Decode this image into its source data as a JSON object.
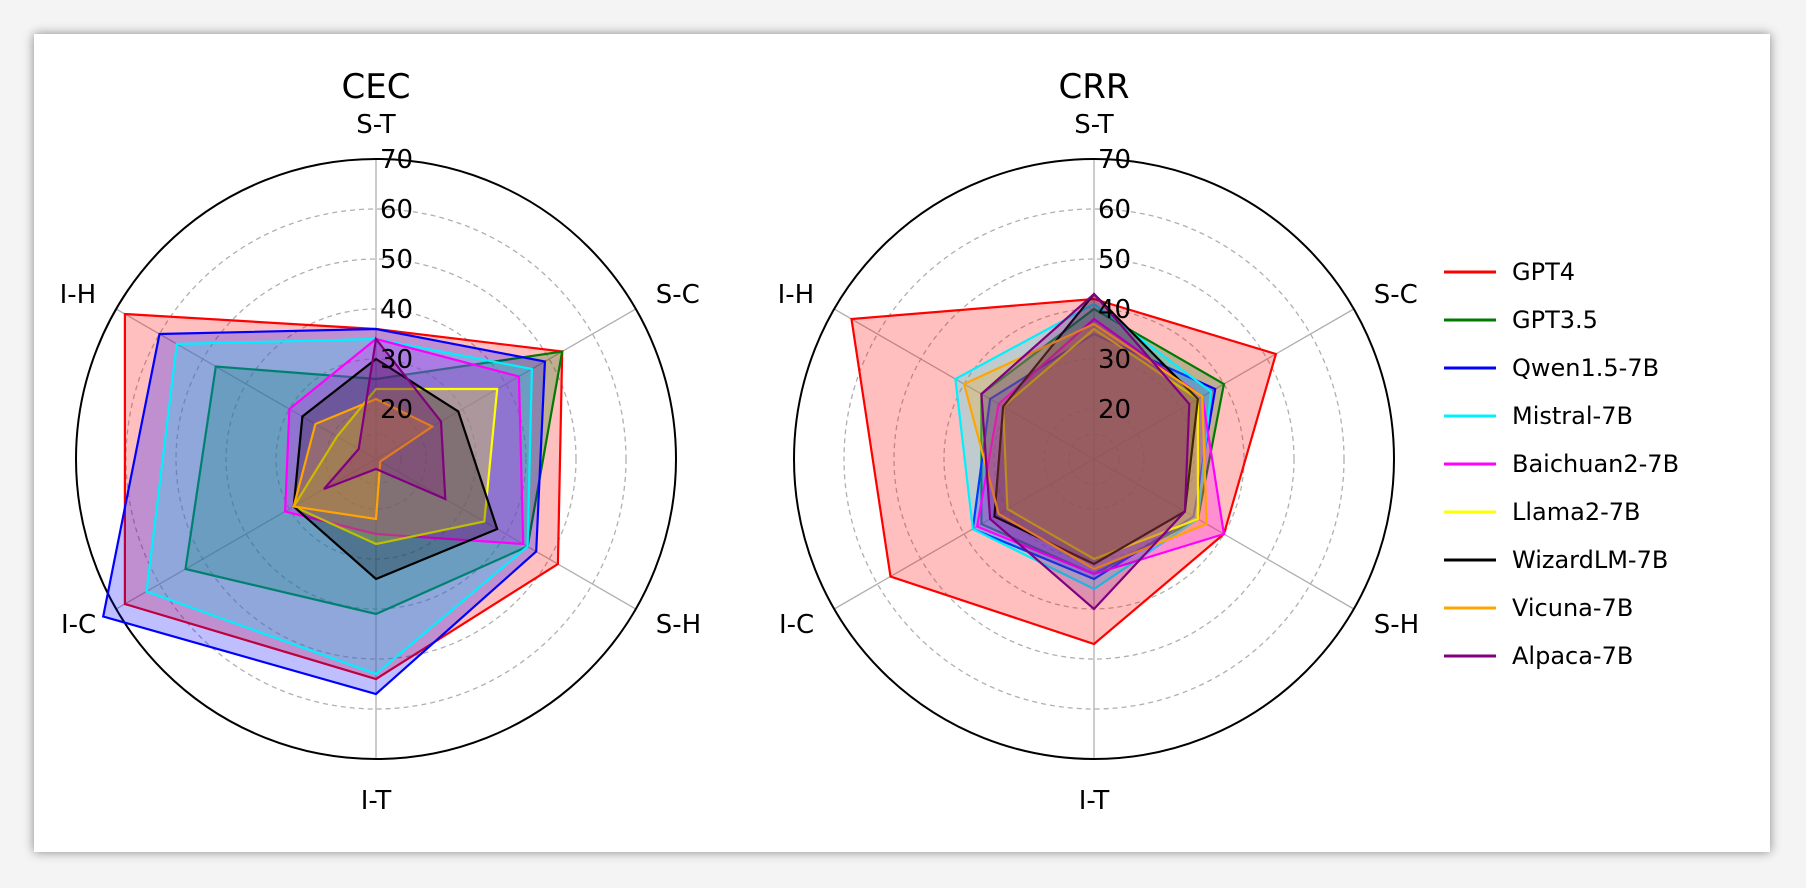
{
  "chart_data": [
    {
      "type": "radar",
      "title": "CEC",
      "axes": [
        "S-T",
        "S-C",
        "S-H",
        "I-T",
        "I-C",
        "I-H"
      ],
      "rlim": [
        10,
        70
      ],
      "rticks": [
        20,
        30,
        40,
        50,
        60,
        70
      ],
      "tick_labels": [
        "20",
        "30",
        "40",
        "50",
        "60",
        "70"
      ],
      "grid": true,
      "series": [
        {
          "name": "GPT4",
          "values": [
            36,
            53,
            52,
            54,
            68,
            68
          ]
        },
        {
          "name": "GPT3.5",
          "values": [
            26,
            53,
            45,
            41,
            54,
            47
          ]
        },
        {
          "name": "Qwen1.5-7B",
          "values": [
            36,
            49,
            47,
            57,
            73,
            60
          ]
        },
        {
          "name": "Mistral-7B",
          "values": [
            34,
            46,
            45,
            53,
            63,
            56
          ]
        },
        {
          "name": "Baichuan2-7B",
          "values": [
            34,
            43,
            44,
            25,
            31,
            30
          ]
        },
        {
          "name": "Llama2-7B",
          "values": [
            24,
            38,
            35,
            27,
            29,
            19
          ]
        },
        {
          "name": "WizardLM-7B",
          "values": [
            30,
            29,
            38,
            34,
            29,
            27
          ]
        },
        {
          "name": "Vicuna-7B",
          "values": [
            22,
            23,
            11,
            22,
            29,
            24
          ]
        },
        {
          "name": "Alpaca-7B",
          "values": [
            34,
            25,
            26,
            12,
            22,
            14
          ]
        }
      ]
    },
    {
      "type": "radar",
      "title": "CRR",
      "axes": [
        "S-T",
        "S-C",
        "S-H",
        "I-T",
        "I-C",
        "I-H"
      ],
      "rlim": [
        10,
        70
      ],
      "rticks": [
        20,
        30,
        40,
        50,
        60,
        70
      ],
      "tick_labels": [
        "20",
        "30",
        "40",
        "50",
        "60",
        "70"
      ],
      "grid": true,
      "series": [
        {
          "name": "GPT4",
          "values": [
            42,
            52,
            40,
            47,
            57,
            66
          ]
        },
        {
          "name": "GPT3.5",
          "values": [
            40,
            40,
            34,
            33,
            36,
            36
          ]
        },
        {
          "name": "Qwen1.5-7B",
          "values": [
            35,
            38,
            33,
            34,
            38,
            34
          ]
        },
        {
          "name": "Mistral-7B",
          "values": [
            41,
            37,
            34,
            36,
            38,
            42
          ]
        },
        {
          "name": "Baichuan2-7B",
          "values": [
            38,
            35,
            40,
            33,
            37,
            32
          ]
        },
        {
          "name": "Llama2-7B",
          "values": [
            36,
            34,
            34,
            30,
            30,
            31
          ]
        },
        {
          "name": "WizardLM-7B",
          "values": [
            43,
            34,
            31,
            31,
            33,
            31
          ]
        },
        {
          "name": "Vicuna-7B",
          "values": [
            37,
            35,
            36,
            32,
            32,
            40
          ]
        },
        {
          "name": "Alpaca-7B",
          "values": [
            43,
            32,
            31,
            40,
            34,
            36
          ]
        }
      ]
    }
  ],
  "colors": [
    "#ff0000",
    "#007a00",
    "#0000ff",
    "#00f0ff",
    "#ff00ff",
    "#ffff00",
    "#000000",
    "#ffa500",
    "#800080"
  ],
  "legend": {
    "placement": "right",
    "items": [
      "GPT4",
      "GPT3.5",
      "Qwen1.5-7B",
      "Mistral-7B",
      "Baichuan2-7B",
      "Llama2-7B",
      "WizardLM-7B",
      "Vicuna-7B",
      "Alpaca-7B"
    ]
  }
}
